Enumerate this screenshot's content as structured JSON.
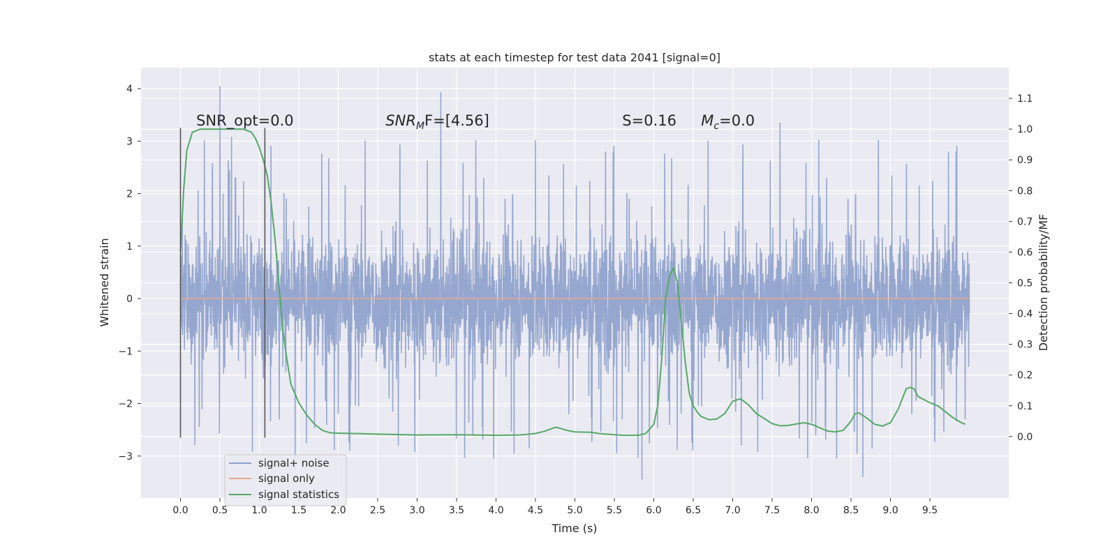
{
  "chart_data": {
    "type": "line",
    "title": "stats at each timestep for test data 2041 [signal=0]",
    "xlabel": "Time (s)",
    "ylabel": "Whitened strain",
    "y2label": "Detection probability/MF",
    "xlim": [
      -0.5,
      10.5
    ],
    "ylim": [
      -3.8,
      4.4
    ],
    "y2lim": [
      -0.2,
      1.2
    ],
    "grid": true,
    "x_ticks": [
      "0.0",
      "0.5",
      "1.0",
      "1.5",
      "2.0",
      "2.5",
      "3.0",
      "3.5",
      "4.0",
      "4.5",
      "5.0",
      "5.5",
      "6.0",
      "6.5",
      "7.0",
      "7.5",
      "8.0",
      "8.5",
      "9.0",
      "9.5"
    ],
    "y_ticks": [
      "−3",
      "−2",
      "−1",
      "0",
      "1",
      "2",
      "3",
      "4"
    ],
    "y2_ticks": [
      "0.0",
      "0.1",
      "0.2",
      "0.3",
      "0.4",
      "0.5",
      "0.6",
      "0.7",
      "0.8",
      "0.9",
      "1.0",
      "1.1"
    ],
    "annotations": [
      {
        "label": "SNR_opt=0.0",
        "x": 0.2,
        "y": 3.3
      },
      {
        "label_main": "SNR",
        "label_sub": "M",
        "label_rest": "F=[4.56]",
        "x": 2.6,
        "y": 3.3
      },
      {
        "label": "S=0.16",
        "x": 5.6,
        "y": 3.3
      },
      {
        "label_main": "M",
        "label_sub": "c",
        "label_rest": "=0.0",
        "x": 6.6,
        "y": 3.3
      }
    ],
    "markers": [
      {
        "x": 0.0,
        "y_from": -2.65,
        "y_to": 3.25
      },
      {
        "x": 1.07,
        "y_from": -2.65,
        "y_to": 3.25
      }
    ],
    "legend": {
      "position": "lower-left"
    },
    "series": [
      {
        "name": "signal+ noise",
        "color": "#8da0cb",
        "x_range": [
          0.0,
          10.0
        ],
        "envelope_upper": 1.5,
        "envelope_lower": -1.6,
        "max": 4.05,
        "min": -3.45,
        "peaks": [
          [
            0.5,
            4.05
          ],
          [
            3.3,
            3.93
          ],
          [
            7.6,
            3.35
          ],
          [
            5.53,
            -2.95
          ],
          [
            5.85,
            -3.45
          ],
          [
            8.65,
            -3.4
          ]
        ]
      },
      {
        "name": "signal only",
        "color": "#e5a98f",
        "x": [
          0.0,
          10.0
        ],
        "values": [
          0.0,
          0.0
        ]
      },
      {
        "name": "signal statistics",
        "color": "#55a868",
        "axis": "right",
        "x": [
          0.0,
          0.04,
          0.08,
          0.15,
          0.25,
          0.4,
          0.55,
          0.7,
          0.8,
          0.9,
          0.95,
          1.0,
          1.05,
          1.1,
          1.15,
          1.2,
          1.25,
          1.3,
          1.35,
          1.4,
          1.5,
          1.6,
          1.7,
          1.8,
          1.9,
          2.0,
          2.5,
          3.0,
          3.5,
          4.0,
          4.3,
          4.5,
          4.6,
          4.7,
          4.75,
          4.8,
          4.9,
          5.0,
          5.2,
          5.3,
          5.6,
          5.8,
          5.9,
          6.0,
          6.05,
          6.1,
          6.15,
          6.2,
          6.25,
          6.3,
          6.35,
          6.4,
          6.45,
          6.5,
          6.55,
          6.6,
          6.7,
          6.8,
          6.9,
          7.0,
          7.1,
          7.2,
          7.3,
          7.5,
          7.6,
          7.7,
          7.9,
          8.0,
          8.2,
          8.3,
          8.4,
          8.5,
          8.55,
          8.6,
          8.7,
          8.8,
          8.9,
          9.0,
          9.1,
          9.2,
          9.25,
          9.3,
          9.35,
          9.5,
          9.6,
          9.7,
          9.8,
          9.9,
          9.95
        ],
        "values": [
          0.6,
          0.8,
          0.93,
          0.99,
          1.0,
          1.0,
          1.0,
          1.0,
          1.0,
          0.99,
          0.97,
          0.94,
          0.9,
          0.85,
          0.76,
          0.64,
          0.49,
          0.34,
          0.25,
          0.17,
          0.11,
          0.07,
          0.04,
          0.02,
          0.012,
          0.011,
          0.008,
          0.005,
          0.006,
          0.004,
          0.005,
          0.01,
          0.016,
          0.025,
          0.03,
          0.028,
          0.02,
          0.015,
          0.014,
          0.01,
          0.004,
          0.004,
          0.01,
          0.04,
          0.1,
          0.25,
          0.45,
          0.52,
          0.55,
          0.5,
          0.37,
          0.24,
          0.14,
          0.1,
          0.08,
          0.065,
          0.055,
          0.057,
          0.075,
          0.115,
          0.123,
          0.103,
          0.075,
          0.042,
          0.035,
          0.036,
          0.045,
          0.04,
          0.018,
          0.015,
          0.02,
          0.05,
          0.074,
          0.077,
          0.06,
          0.04,
          0.034,
          0.045,
          0.09,
          0.155,
          0.16,
          0.155,
          0.13,
          0.11,
          0.1,
          0.08,
          0.06,
          0.045,
          0.04
        ]
      }
    ]
  }
}
